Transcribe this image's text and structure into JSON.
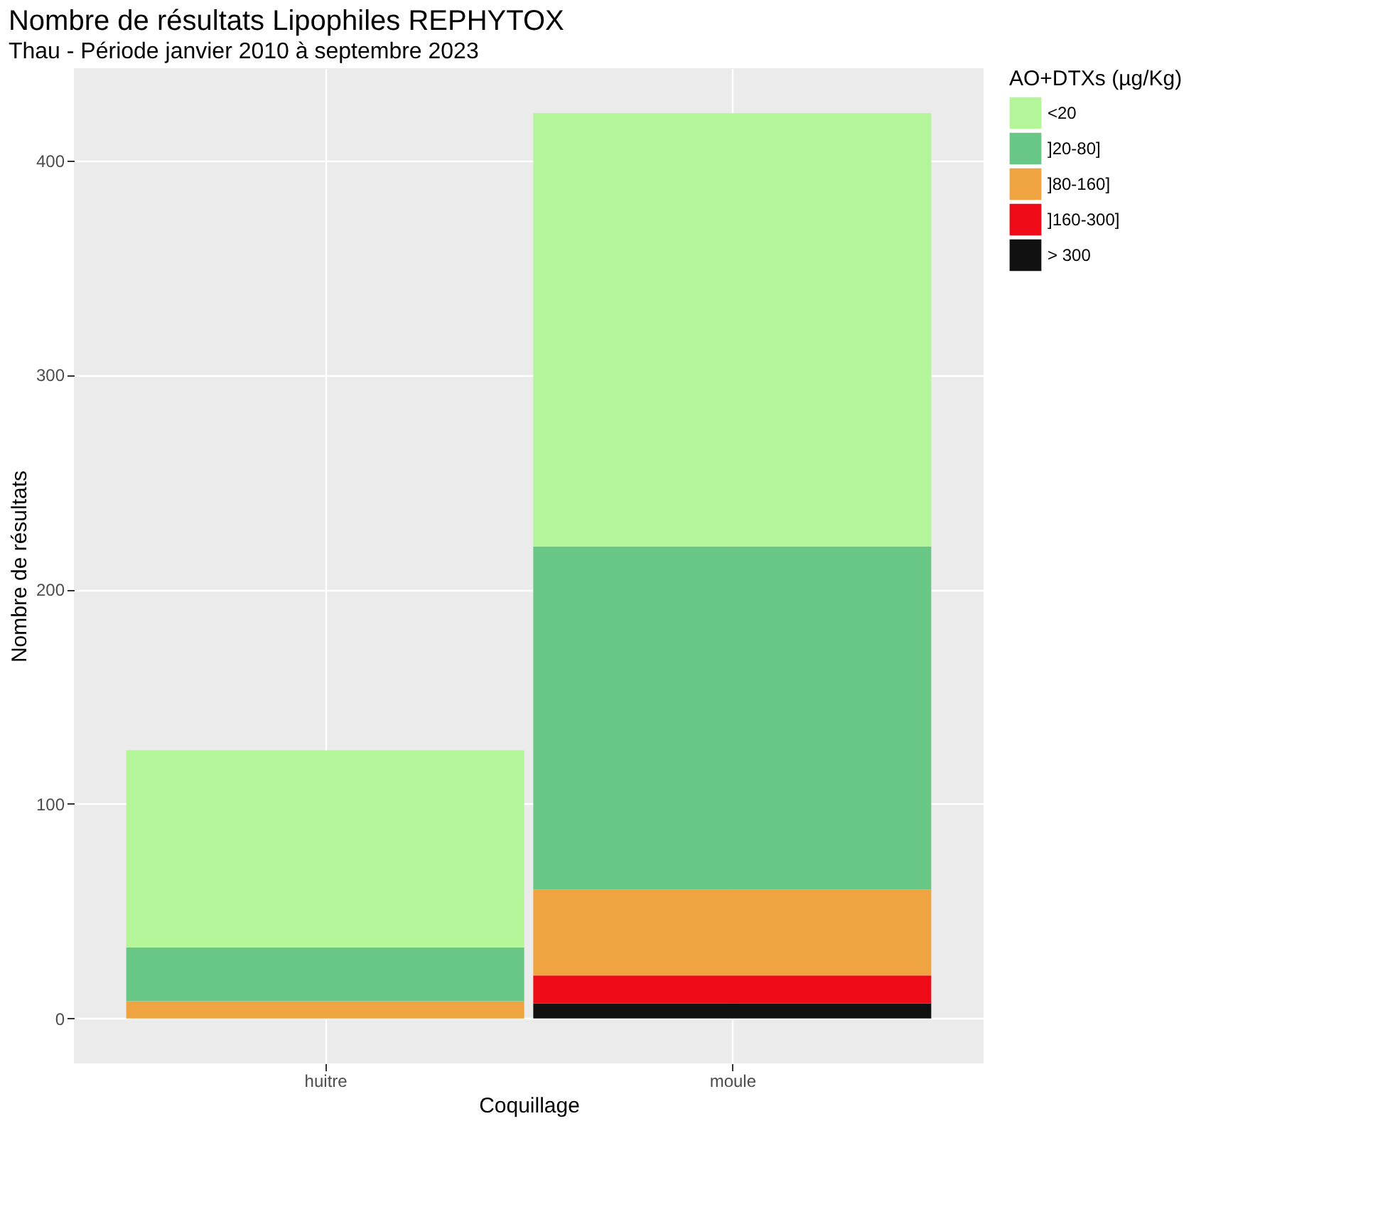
{
  "chart_data": {
    "type": "bar",
    "title": "Nombre de résultats Lipophiles REPHYTOX",
    "subtitle": "Thau - Période janvier 2010 à septembre 2023",
    "xlabel": "Coquillage",
    "ylabel": "Nombre de résultats",
    "legend_title": "AO+DTXs (µg/Kg)",
    "categories": [
      "huitre",
      "moule"
    ],
    "stacked": true,
    "series": [
      {
        "name": "> 300",
        "color": "#111111",
        "values": [
          0,
          7
        ]
      },
      {
        "name": "]160-300]",
        "color": "#ee0a17",
        "values": [
          0,
          13
        ]
      },
      {
        "name": "]80-160]",
        "color": "#efa341",
        "values": [
          8,
          40
        ]
      },
      {
        "name": "]20-80]",
        "color": "#68c784",
        "values": [
          25,
          160
        ]
      },
      {
        "name": "<20",
        "color": "#b3f598",
        "values": [
          92,
          202
        ]
      }
    ],
    "ylim": [
      -21,
      443
    ],
    "yticks": [
      0,
      100,
      200,
      300,
      400
    ],
    "grid": true,
    "legend": "right"
  }
}
